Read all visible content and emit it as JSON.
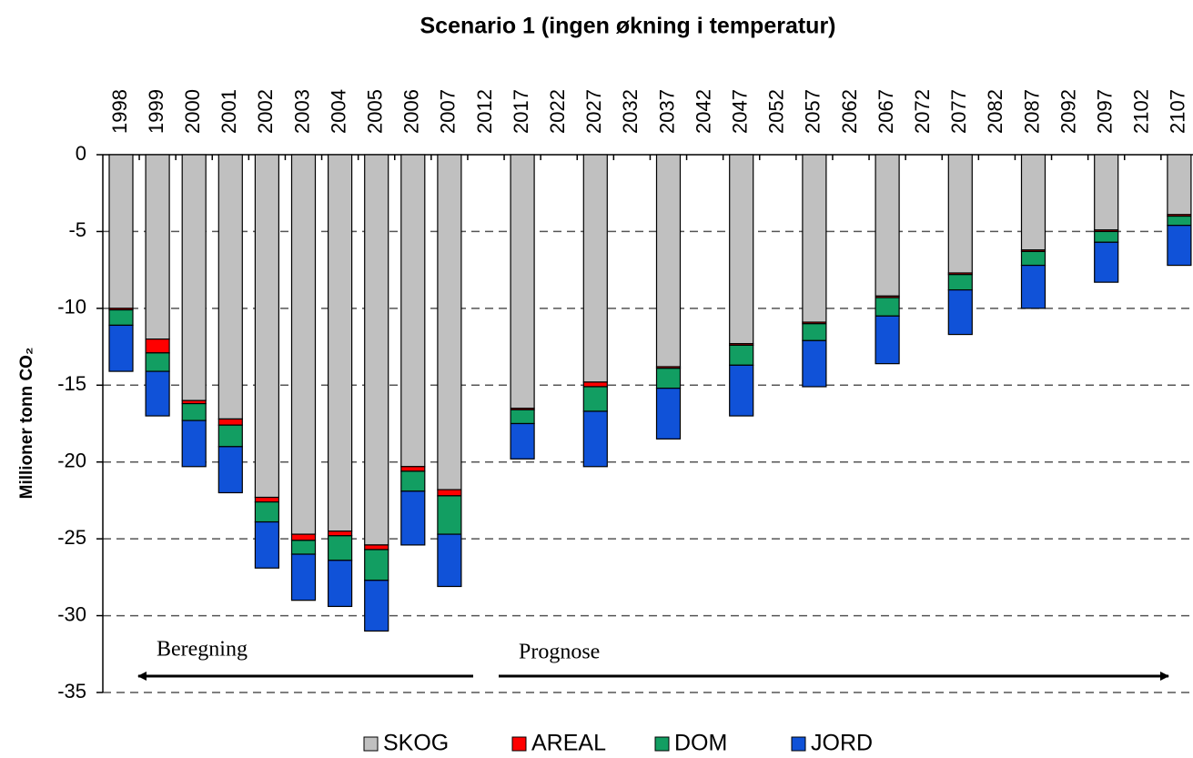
{
  "chart_data": {
    "type": "stacked_bar",
    "title": "Scenario 1 (ingen økning i temperatur)",
    "y_label": "Millioner tonn CO₂",
    "categories": [
      "1998",
      "1999",
      "2000",
      "2001",
      "2002",
      "2003",
      "2004",
      "2005",
      "2006",
      "2007",
      "2012",
      "2017",
      "2022",
      "2027",
      "2032",
      "2037",
      "2042",
      "2047",
      "2052",
      "2057",
      "2062",
      "2067",
      "2072",
      "2077",
      "2082",
      "2087",
      "2092",
      "2097",
      "2102",
      "2107"
    ],
    "series": [
      {
        "name": "SKOG",
        "color": "#c0c0c0",
        "values": [
          -10,
          -12,
          -16,
          -17.2,
          -22.3,
          -24.7,
          -24.5,
          -25.4,
          -20.3,
          -21.8,
          null,
          -16.5,
          null,
          -14.8,
          null,
          -13.8,
          null,
          -12.3,
          null,
          -10.9,
          null,
          -9.2,
          null,
          -7.7,
          null,
          -6.2,
          null,
          -4.9,
          null,
          -3.9
        ]
      },
      {
        "name": "AREAL",
        "color": "#ff0000",
        "values": [
          -0.1,
          -0.9,
          -0.2,
          -0.4,
          -0.3,
          -0.4,
          -0.3,
          -0.3,
          -0.3,
          -0.4,
          null,
          -0.1,
          null,
          -0.3,
          null,
          -0.1,
          null,
          -0.1,
          null,
          -0.1,
          null,
          -0.1,
          null,
          -0.1,
          null,
          -0.1,
          null,
          -0.1,
          null,
          -0.1
        ]
      },
      {
        "name": "DOM",
        "color": "#129e62",
        "values": [
          -1,
          -1.2,
          -1.1,
          -1.4,
          -1.3,
          -0.9,
          -1.6,
          -2,
          -1.3,
          -2.5,
          null,
          -0.9,
          null,
          -1.6,
          null,
          -1.3,
          null,
          -1.3,
          null,
          -1.1,
          null,
          -1.2,
          null,
          -1,
          null,
          -0.9,
          null,
          -0.7,
          null,
          -0.6
        ]
      },
      {
        "name": "JORD",
        "color": "#1052d8",
        "values": [
          -3,
          -2.9,
          -3,
          -3,
          -3,
          -3,
          -3,
          -3.3,
          -3.5,
          -3.4,
          null,
          -2.3,
          null,
          -3.6,
          null,
          -3.3,
          null,
          -3.3,
          null,
          -3,
          null,
          -3.1,
          null,
          -2.9,
          null,
          -2.8,
          null,
          -2.6,
          null,
          -2.6
        ]
      }
    ],
    "ylim": [
      -35,
      0
    ],
    "yticks": [
      0,
      -5,
      -10,
      -15,
      -20,
      -25,
      -30,
      -35
    ],
    "grid": true,
    "annotations": [
      "Beregning",
      "Prognose"
    ]
  }
}
